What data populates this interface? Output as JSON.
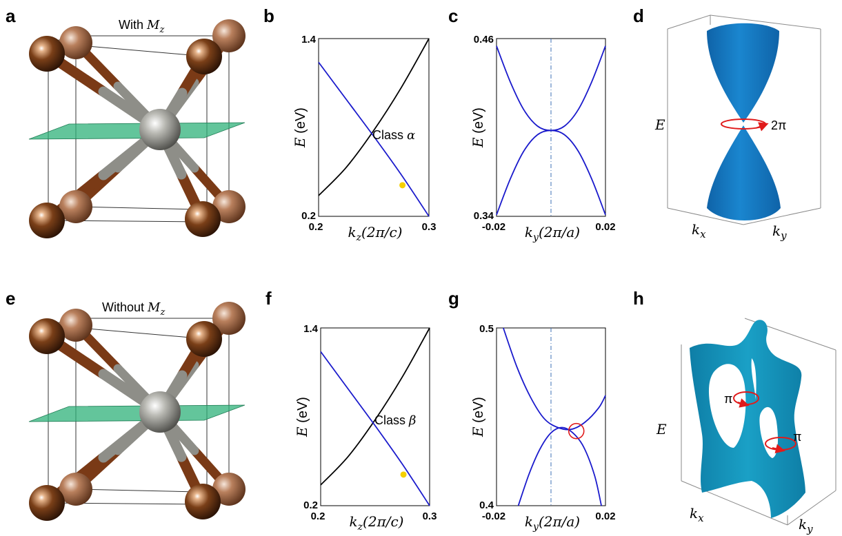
{
  "panels": {
    "a": {
      "label": "a",
      "caption_prefix": "With ",
      "caption_symbol": "M",
      "caption_sub": "z"
    },
    "b": {
      "label": "b"
    },
    "c": {
      "label": "c"
    },
    "d": {
      "label": "d",
      "E": "E",
      "kx": "k",
      "kx_sub": "x",
      "ky": "k",
      "ky_sub": "y",
      "winding": "2π"
    },
    "e": {
      "label": "e",
      "caption_prefix": "Without ",
      "caption_symbol": "M",
      "caption_sub": "z"
    },
    "f": {
      "label": "f"
    },
    "g": {
      "label": "g"
    },
    "h": {
      "label": "h",
      "E": "E",
      "kx": "k",
      "kx_sub": "x",
      "ky": "k",
      "ky_sub": "y",
      "winding1": "π",
      "winding2": "π"
    }
  },
  "colors": {
    "band_blue": "#1a1acc",
    "band_black": "#000000",
    "marker_yellow": "#f5d000",
    "loop_red": "#e01b1b",
    "surface_blue": "#1a78c2",
    "surface_teal": "#1a93b8",
    "mirror_green": "#2fb27a",
    "atom_brown": "#8a4a24",
    "atom_grey": "#9a9a94"
  },
  "chart_data": [
    {
      "panel": "b",
      "type": "line",
      "xlim": [
        0.2,
        0.3
      ],
      "ylim": [
        0.2,
        1.4
      ],
      "xticks": [
        "0.2",
        "0.3"
      ],
      "yticks": [
        "0.2",
        "1.4"
      ],
      "xlabel": {
        "sym": "k",
        "sub": "z",
        "unit": "(2π/c)"
      },
      "ylabel": {
        "sym": "E",
        "unit": " (eV)"
      },
      "annotation": {
        "text": "Class ",
        "sym": "α"
      },
      "series": [
        {
          "color": "black",
          "x": [
            0.2,
            0.225,
            0.25,
            0.275,
            0.3
          ],
          "y": [
            0.34,
            0.53,
            0.78,
            1.07,
            1.4
          ]
        },
        {
          "color": "blue",
          "x": [
            0.2,
            0.225,
            0.25,
            0.275,
            0.3
          ],
          "y": [
            1.24,
            0.99,
            0.74,
            0.48,
            0.2
          ]
        }
      ],
      "marker": {
        "x": 0.276,
        "y": 0.41
      }
    },
    {
      "panel": "c",
      "type": "line",
      "xlim": [
        -0.02,
        0.02
      ],
      "ylim": [
        0.34,
        0.46
      ],
      "xticks": [
        "-0.02",
        "0.02"
      ],
      "yticks": [
        "0.34",
        "0.46"
      ],
      "xlabel": {
        "sym": "k",
        "sub": "y",
        "unit": "(2π/a)"
      },
      "ylabel": {
        "sym": "E",
        "unit": " (eV)"
      },
      "vline": 0.0,
      "series": [
        {
          "color": "blue",
          "x": [
            -0.02,
            -0.015,
            -0.01,
            -0.005,
            0,
            0.005,
            0.01,
            0.015,
            0.02
          ],
          "y": [
            0.455,
            0.431,
            0.412,
            0.401,
            0.398,
            0.401,
            0.412,
            0.431,
            0.455
          ]
        },
        {
          "color": "blue",
          "x": [
            -0.02,
            -0.015,
            -0.01,
            -0.005,
            0,
            0.005,
            0.01,
            0.015,
            0.02
          ],
          "y": [
            0.341,
            0.365,
            0.384,
            0.395,
            0.398,
            0.395,
            0.384,
            0.365,
            0.341
          ]
        }
      ]
    },
    {
      "panel": "f",
      "type": "line",
      "xlim": [
        0.2,
        0.3
      ],
      "ylim": [
        0.2,
        1.4
      ],
      "xticks": [
        "0.2",
        "0.3"
      ],
      "yticks": [
        "0.2",
        "1.4"
      ],
      "xlabel": {
        "sym": "k",
        "sub": "z",
        "unit": "(2π/c)"
      },
      "ylabel": {
        "sym": "E",
        "unit": " (eV)"
      },
      "annotation": {
        "text": "Class ",
        "sym": "β"
      },
      "series": [
        {
          "color": "black",
          "x": [
            0.2,
            0.225,
            0.25,
            0.275,
            0.3
          ],
          "y": [
            0.34,
            0.53,
            0.78,
            1.07,
            1.4
          ]
        },
        {
          "color": "blue",
          "x": [
            0.2,
            0.225,
            0.25,
            0.275,
            0.3
          ],
          "y": [
            1.24,
            0.99,
            0.74,
            0.48,
            0.2
          ]
        }
      ],
      "marker": {
        "x": 0.276,
        "y": 0.41
      }
    },
    {
      "panel": "g",
      "type": "line",
      "xlim": [
        -0.02,
        0.02
      ],
      "ylim": [
        0.4,
        0.5
      ],
      "xticks": [
        "-0.02",
        "0.02"
      ],
      "yticks": [
        "0.4",
        "0.5"
      ],
      "xlabel": {
        "sym": "k",
        "sub": "y",
        "unit": "(2π/a)"
      },
      "ylabel": {
        "sym": "E",
        "unit": " (eV)"
      },
      "vline": 0.0,
      "series": [
        {
          "color": "blue",
          "x": [
            -0.0175,
            -0.0125,
            -0.0075,
            -0.0025,
            0.0025,
            0.0075,
            0.0125,
            0.0175,
            0.02
          ],
          "y": [
            0.5,
            0.478,
            0.461,
            0.449,
            0.444,
            0.443,
            0.447,
            0.455,
            0.462
          ]
        },
        {
          "color": "blue",
          "x": [
            -0.012,
            -0.008,
            -0.004,
            0,
            0.004,
            0.008,
            0.012,
            0.016,
            0.0185
          ],
          "y": [
            0.4,
            0.418,
            0.432,
            0.441,
            0.444,
            0.441,
            0.433,
            0.417,
            0.4
          ]
        }
      ],
      "circle": {
        "x": 0.0093,
        "y": 0.442
      }
    }
  ]
}
